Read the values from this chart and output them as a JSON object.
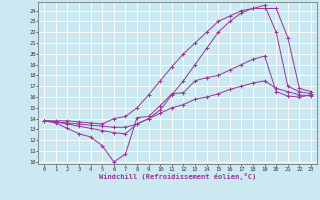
{
  "xlabel": "Windchill (Refroidissement éolien,°C)",
  "background_color": "#cce8f0",
  "line_color": "#993399",
  "grid_color": "#ffffff",
  "xlim": [
    -0.5,
    23.5
  ],
  "ylim": [
    9.8,
    24.8
  ],
  "yticks": [
    10,
    11,
    12,
    13,
    14,
    15,
    16,
    17,
    18,
    19,
    20,
    21,
    22,
    23,
    24
  ],
  "xticks": [
    0,
    1,
    2,
    3,
    4,
    5,
    6,
    7,
    8,
    9,
    10,
    11,
    12,
    13,
    14,
    15,
    16,
    17,
    18,
    19,
    20,
    21,
    22,
    23
  ],
  "series": [
    {
      "x": [
        0,
        1,
        2,
        3,
        4,
        5,
        6,
        7,
        8,
        9,
        10,
        11,
        12,
        13,
        14,
        15,
        16,
        17,
        18,
        19,
        20,
        21,
        22,
        23
      ],
      "y": [
        13.8,
        13.6,
        13.1,
        12.6,
        12.3,
        11.5,
        10.0,
        10.7,
        14.1,
        14.2,
        15.2,
        16.3,
        16.4,
        17.5,
        17.8,
        18.0,
        18.5,
        19.0,
        19.5,
        19.8,
        16.5,
        16.1,
        16.0,
        16.2
      ]
    },
    {
      "x": [
        0,
        1,
        2,
        3,
        4,
        5,
        6,
        7,
        8,
        9,
        10,
        11,
        12,
        13,
        14,
        15,
        16,
        17,
        18,
        19,
        20,
        21,
        22,
        23
      ],
      "y": [
        13.8,
        13.7,
        13.5,
        13.3,
        13.1,
        12.9,
        12.7,
        12.6,
        13.5,
        14.0,
        14.5,
        15.0,
        15.3,
        15.8,
        16.0,
        16.3,
        16.7,
        17.0,
        17.3,
        17.5,
        16.8,
        16.5,
        16.2,
        16.1
      ]
    },
    {
      "x": [
        0,
        1,
        2,
        3,
        4,
        5,
        6,
        7,
        8,
        9,
        10,
        11,
        12,
        13,
        14,
        15,
        16,
        17,
        18,
        19,
        20,
        21,
        22,
        23
      ],
      "y": [
        13.8,
        13.8,
        13.8,
        13.7,
        13.6,
        13.5,
        14.0,
        14.2,
        15.0,
        16.2,
        17.5,
        18.8,
        20.0,
        21.0,
        22.0,
        23.0,
        23.5,
        24.0,
        24.2,
        24.5,
        22.0,
        17.0,
        16.5,
        16.3
      ]
    },
    {
      "x": [
        0,
        1,
        2,
        3,
        4,
        5,
        6,
        7,
        8,
        9,
        10,
        11,
        12,
        13,
        14,
        15,
        16,
        17,
        18,
        19,
        20,
        21,
        22,
        23
      ],
      "y": [
        13.8,
        13.7,
        13.6,
        13.5,
        13.4,
        13.3,
        13.2,
        13.2,
        13.5,
        14.0,
        14.8,
        16.2,
        17.5,
        19.0,
        20.5,
        22.0,
        23.0,
        23.8,
        24.2,
        24.2,
        24.2,
        21.5,
        16.8,
        16.5
      ]
    }
  ]
}
